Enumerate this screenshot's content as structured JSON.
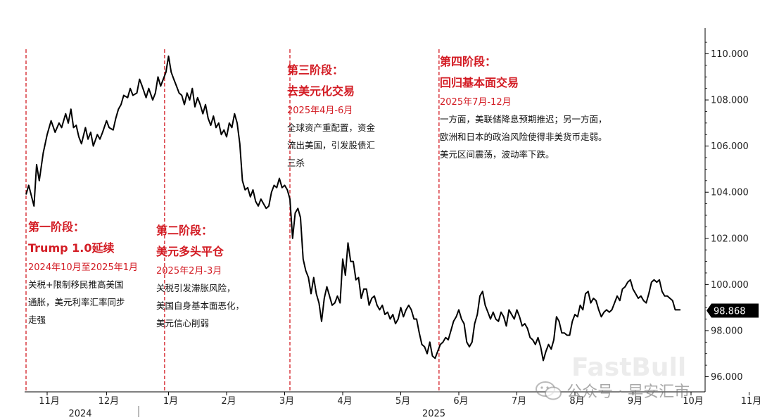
{
  "chart_data": {
    "type": "line",
    "series": [
      {
        "values": [
          [
            0,
            103.9
          ],
          [
            2,
            104.3
          ],
          [
            6,
            103.4
          ],
          [
            8,
            105.2
          ],
          [
            10,
            104.5
          ],
          [
            13,
            105.7
          ],
          [
            16,
            106.5
          ],
          [
            19,
            107.1
          ],
          [
            22,
            106.6
          ],
          [
            25,
            107.0
          ],
          [
            27,
            106.8
          ],
          [
            30,
            107.4
          ],
          [
            32,
            107.0
          ],
          [
            34,
            107.6
          ],
          [
            36,
            106.8
          ],
          [
            38,
            106.9
          ],
          [
            40,
            106.4
          ],
          [
            42,
            106.1
          ],
          [
            45,
            106.8
          ],
          [
            47,
            106.3
          ],
          [
            49,
            106.6
          ],
          [
            51,
            106.0
          ],
          [
            54,
            106.5
          ],
          [
            56,
            106.3
          ],
          [
            58,
            106.6
          ],
          [
            61,
            107.1
          ],
          [
            63,
            106.8
          ],
          [
            66,
            106.7
          ],
          [
            68,
            107.2
          ],
          [
            70,
            107.6
          ],
          [
            72,
            107.8
          ],
          [
            74,
            108.2
          ],
          [
            77,
            108.1
          ],
          [
            79,
            108.5
          ],
          [
            81,
            108.2
          ],
          [
            84,
            108.3
          ],
          [
            86,
            108.9
          ],
          [
            88,
            108.6
          ],
          [
            91,
            108.1
          ],
          [
            93,
            108.5
          ],
          [
            96,
            108.0
          ],
          [
            98,
            108.3
          ],
          [
            100,
            109.0
          ],
          [
            102,
            108.6
          ],
          [
            104,
            108.9
          ],
          [
            106,
            109.2
          ],
          [
            108,
            109.9
          ],
          [
            110,
            109.2
          ],
          [
            112,
            108.9
          ],
          [
            114,
            108.6
          ],
          [
            116,
            108.3
          ],
          [
            118,
            108.2
          ],
          [
            120,
            107.8
          ],
          [
            122,
            108.3
          ],
          [
            124,
            108.0
          ],
          [
            126,
            108.5
          ],
          [
            128,
            107.7
          ],
          [
            130,
            108.1
          ],
          [
            132,
            107.8
          ],
          [
            134,
            107.4
          ],
          [
            136,
            107.8
          ],
          [
            138,
            107.2
          ],
          [
            140,
            106.9
          ],
          [
            142,
            107.3
          ],
          [
            144,
            106.8
          ],
          [
            146,
            107.0
          ],
          [
            148,
            106.5
          ],
          [
            150,
            106.7
          ],
          [
            152,
            106.4
          ],
          [
            154,
            107.0
          ],
          [
            156,
            106.8
          ],
          [
            158,
            107.4
          ],
          [
            160,
            107.0
          ],
          [
            162,
            106.1
          ],
          [
            164,
            104.5
          ],
          [
            166,
            104.1
          ],
          [
            168,
            104.2
          ],
          [
            170,
            103.8
          ],
          [
            172,
            104.1
          ],
          [
            174,
            103.6
          ],
          [
            176,
            103.4
          ],
          [
            178,
            103.7
          ],
          [
            180,
            103.5
          ],
          [
            182,
            103.3
          ],
          [
            184,
            103.4
          ],
          [
            186,
            104.0
          ],
          [
            188,
            104.3
          ],
          [
            190,
            104.2
          ],
          [
            192,
            104.6
          ],
          [
            194,
            104.2
          ],
          [
            196,
            104.3
          ],
          [
            198,
            104.1
          ],
          [
            200,
            103.7
          ],
          [
            202,
            102.0
          ],
          [
            204,
            103.1
          ],
          [
            206,
            103.3
          ],
          [
            208,
            102.9
          ],
          [
            210,
            101.1
          ],
          [
            212,
            100.6
          ],
          [
            214,
            100.3
          ],
          [
            216,
            99.6
          ],
          [
            218,
            100.3
          ],
          [
            220,
            99.6
          ],
          [
            222,
            99.2
          ],
          [
            224,
            98.4
          ],
          [
            226,
            99.4
          ],
          [
            228,
            99.9
          ],
          [
            230,
            99.5
          ],
          [
            232,
            99.1
          ],
          [
            234,
            99.2
          ],
          [
            236,
            99.5
          ],
          [
            238,
            99.2
          ],
          [
            240,
            101.1
          ],
          [
            242,
            100.4
          ],
          [
            244,
            101.8
          ],
          [
            246,
            101.0
          ],
          [
            248,
            101.0
          ],
          [
            250,
            100.2
          ],
          [
            252,
            100.3
          ],
          [
            254,
            99.4
          ],
          [
            256,
            99.8
          ],
          [
            258,
            99.8
          ],
          [
            260,
            99.1
          ],
          [
            262,
            99.4
          ],
          [
            264,
            99.5
          ],
          [
            266,
            99.1
          ],
          [
            268,
            98.9
          ],
          [
            270,
            99.1
          ],
          [
            272,
            98.7
          ],
          [
            274,
            98.8
          ],
          [
            276,
            98.5
          ],
          [
            278,
            98.7
          ],
          [
            280,
            98.3
          ],
          [
            282,
            98.5
          ],
          [
            284,
            99.0
          ],
          [
            286,
            98.6
          ],
          [
            288,
            98.9
          ],
          [
            290,
            99.1
          ],
          [
            292,
            98.9
          ],
          [
            294,
            98.5
          ],
          [
            296,
            98.5
          ],
          [
            298,
            97.9
          ],
          [
            300,
            97.4
          ],
          [
            302,
            97.3
          ],
          [
            304,
            97.0
          ],
          [
            306,
            97.5
          ],
          [
            308,
            96.9
          ],
          [
            310,
            96.8
          ],
          [
            312,
            97.1
          ],
          [
            314,
            97.4
          ],
          [
            316,
            97.5
          ],
          [
            318,
            97.7
          ],
          [
            320,
            97.6
          ],
          [
            322,
            98.0
          ],
          [
            324,
            98.4
          ],
          [
            326,
            98.6
          ],
          [
            328,
            98.9
          ],
          [
            330,
            98.5
          ],
          [
            332,
            98.3
          ],
          [
            334,
            97.5
          ],
          [
            336,
            97.3
          ],
          [
            338,
            97.5
          ],
          [
            340,
            98.3
          ],
          [
            342,
            98.7
          ],
          [
            344,
            99.5
          ],
          [
            346,
            99.7
          ],
          [
            348,
            99.1
          ],
          [
            350,
            98.8
          ],
          [
            352,
            98.5
          ],
          [
            354,
            98.8
          ],
          [
            356,
            98.5
          ],
          [
            358,
            98.4
          ],
          [
            360,
            98.8
          ],
          [
            362,
            98.6
          ],
          [
            364,
            98.2
          ],
          [
            366,
            98.9
          ],
          [
            368,
            98.7
          ],
          [
            370,
            98.5
          ],
          [
            372,
            98.9
          ],
          [
            374,
            98.6
          ],
          [
            376,
            98.2
          ],
          [
            378,
            98.3
          ],
          [
            380,
            98.1
          ],
          [
            382,
            97.7
          ],
          [
            384,
            97.6
          ],
          [
            386,
            97.4
          ],
          [
            388,
            97.7
          ],
          [
            390,
            97.3
          ],
          [
            392,
            96.7
          ],
          [
            394,
            97.1
          ],
          [
            396,
            97.4
          ],
          [
            398,
            97.2
          ],
          [
            400,
            97.6
          ],
          [
            402,
            98.6
          ],
          [
            404,
            98.4
          ],
          [
            406,
            97.9
          ],
          [
            408,
            97.9
          ],
          [
            410,
            97.8
          ],
          [
            412,
            97.8
          ],
          [
            414,
            98.4
          ],
          [
            416,
            98.7
          ],
          [
            418,
            98.6
          ],
          [
            420,
            99.1
          ],
          [
            422,
            98.9
          ],
          [
            424,
            99.6
          ],
          [
            426,
            99.7
          ],
          [
            428,
            99.2
          ],
          [
            430,
            99.4
          ],
          [
            432,
            99.3
          ],
          [
            434,
            98.9
          ],
          [
            436,
            98.6
          ],
          [
            438,
            98.8
          ],
          [
            440,
            98.9
          ],
          [
            442,
            98.8
          ],
          [
            444,
            98.9
          ],
          [
            446,
            99.2
          ],
          [
            448,
            99.5
          ],
          [
            450,
            99.3
          ],
          [
            452,
            99.8
          ],
          [
            454,
            99.9
          ],
          [
            456,
            100.1
          ],
          [
            458,
            100.2
          ],
          [
            460,
            99.8
          ],
          [
            462,
            99.6
          ],
          [
            464,
            99.4
          ],
          [
            466,
            99.5
          ],
          [
            468,
            99.3
          ],
          [
            470,
            99.2
          ],
          [
            472,
            99.6
          ],
          [
            474,
            100.1
          ],
          [
            476,
            100.2
          ],
          [
            478,
            100.1
          ],
          [
            480,
            100.2
          ],
          [
            482,
            99.7
          ],
          [
            484,
            99.5
          ],
          [
            486,
            99.5
          ],
          [
            488,
            99.4
          ],
          [
            490,
            99.3
          ],
          [
            492,
            98.9
          ],
          [
            494,
            98.9
          ],
          [
            496,
            98.9
          ]
        ]
      }
    ],
    "x_ticks": [
      {
        "label": "11月",
        "x": 16
      },
      {
        "label": "12月",
        "x": 61
      },
      {
        "label": "1月",
        "x": 108
      },
      {
        "label": "2月",
        "x": 152
      },
      {
        "label": "3月",
        "x": 196
      },
      {
        "label": "4月",
        "x": 240
      },
      {
        "label": "5月",
        "x": 284
      },
      {
        "label": "6月",
        "x": 328
      },
      {
        "label": "7月",
        "x": 372
      },
      {
        "label": "8月",
        "x": 416
      },
      {
        "label": "9月",
        "x": 460
      },
      {
        "label": "10月",
        "x": 504
      },
      {
        "label": "11月",
        "x": 548
      }
    ],
    "year_labels": [
      {
        "label": "2024",
        "x": 40
      },
      {
        "label": "2025",
        "x": 308
      }
    ],
    "year_divider_x": 96,
    "y_ticks": [
      "96.000",
      "98.000",
      "100.000",
      "102.000",
      "104.000",
      "106.000",
      "108.000",
      "110.000"
    ],
    "y_tick_values": [
      96,
      98,
      100,
      102,
      104,
      106,
      108,
      110
    ],
    "ylim": [
      95.3,
      111.1
    ],
    "xlim": [
      0,
      570
    ],
    "last_value_label": "98.868",
    "last_value": 98.868,
    "phase_dividers_x": [
      0,
      105,
      200,
      313
    ],
    "line_color": "#000000",
    "divider_color": "#d31c24"
  },
  "phases": [
    {
      "title1": "第一阶段：",
      "title2": "Trump 1.0延续",
      "date": "2024年10月至2025年1月",
      "desc": "关税+限制移民推高美国\n通胀，美元利率汇率同步\n走强"
    },
    {
      "title1": "第二阶段：",
      "title2": "美元多头平仓",
      "date": "2025年2月-3月",
      "desc": "关税引发滞胀风险，\n美国自身基本面恶化，\n美元信心削弱"
    },
    {
      "title1": "第三阶段：",
      "title2": "去美元化交易",
      "date": "2025年4月-6月",
      "desc": "全球资产重配置，资金\n流出美国，引发股债汇\n三杀"
    },
    {
      "title1": "第四阶段：",
      "title2": "回归基本面交易",
      "date": "2025年7月-12月",
      "desc": "一方面，美联储降息预期推迟；另一方面，\n欧洲和日本的政治风险使得非美货币走弱。\n美元区间震荡，波动率下跌。"
    }
  ],
  "watermark": {
    "brand": "FastBull",
    "account": "公众号 · 早安汇市"
  }
}
